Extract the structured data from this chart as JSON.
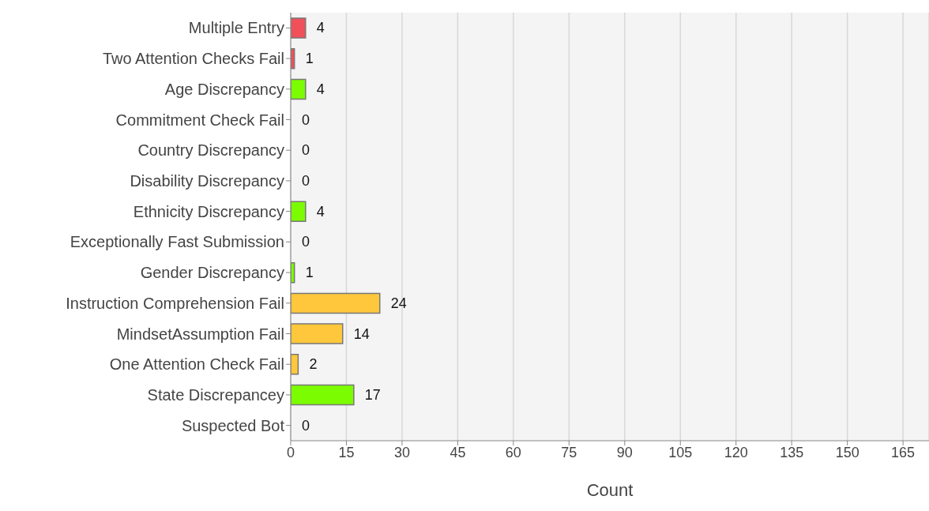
{
  "chart_data": {
    "type": "bar",
    "orientation": "horizontal",
    "xlabel": "Count",
    "categories": [
      "Multiple Entry",
      "Two Attention Checks Fail",
      "Age Discrepancy",
      "Commitment Check Fail",
      "Country Discrepancy",
      "Disability Discrepancy",
      "Ethnicity Discrepancy",
      "Exceptionally Fast Submission",
      "Gender Discrepancy",
      "Instruction Comprehension Fail",
      "MindsetAssumption Fail",
      "One Attention Check Fail",
      "State Discrepancey",
      "Suspected Bot"
    ],
    "values": [
      4,
      1,
      4,
      0,
      0,
      0,
      4,
      0,
      1,
      24,
      14,
      2,
      17,
      0
    ],
    "colors": [
      "#f0505a",
      "#f0505a",
      "#7cfc00",
      "#7cfc00",
      "#7cfc00",
      "#7cfc00",
      "#7cfc00",
      "#ffc83c",
      "#7cfc00",
      "#ffc83c",
      "#ffc83c",
      "#ffc83c",
      "#7cfc00",
      "#7cfc00"
    ],
    "xlim": [
      0,
      172
    ],
    "xticks": [
      0,
      15,
      30,
      45,
      60,
      75,
      90,
      105,
      120,
      135,
      150,
      165
    ],
    "grid": "x",
    "data_labels": true
  }
}
